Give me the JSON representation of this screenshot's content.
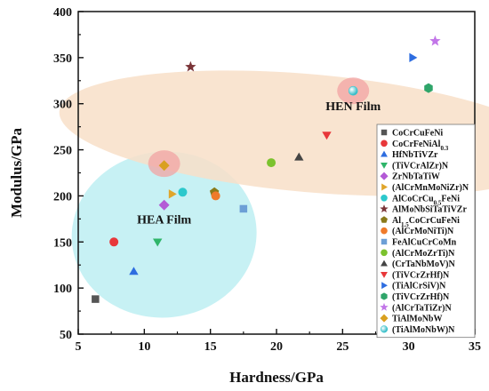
{
  "chart_data": {
    "type": "scatter",
    "xlabel": "Hardness/GPa",
    "ylabel": "Modulus/GPa",
    "xlim": [
      5,
      35
    ],
    "ylim": [
      50,
      400
    ],
    "xticks": [
      "5",
      "10",
      "15",
      "20",
      "25",
      "30",
      "35"
    ],
    "yticks": [
      "50",
      "100",
      "150",
      "200",
      "250",
      "300",
      "350",
      "400"
    ],
    "grid": false,
    "legend": "right",
    "annotations": [
      {
        "text": "HEN Film",
        "x": 25.8,
        "y": 293
      },
      {
        "text": "HEA Film",
        "x": 11.5,
        "y": 170
      }
    ],
    "regions": [
      {
        "cx": 11.5,
        "cy": 158,
        "rx": 7,
        "ry": 90,
        "angle_deg": -6,
        "color": "#bdeef2"
      },
      {
        "cx": 22.5,
        "cy": 268,
        "rx": 19,
        "ry": 64,
        "angle_deg": 5,
        "color": "#f8dfc8"
      }
    ],
    "highlights": [
      {
        "x": 11.5,
        "y": 235,
        "color": "#f2a3a3"
      },
      {
        "x": 25.8,
        "y": 314,
        "color": "#f2a3a3"
      }
    ],
    "series": [
      {
        "name": "CoCrCuFeNi",
        "marker": "square",
        "color": "#555555",
        "points": [
          [
            6.3,
            88
          ]
        ]
      },
      {
        "name": "CoCrFeNiAl0.3",
        "label_main": "CoCrFeNiAl",
        "label_sub": "0.3",
        "marker": "circle",
        "color": "#e8373a",
        "points": [
          [
            7.7,
            150
          ]
        ]
      },
      {
        "name": "HfNbTiVZr",
        "marker": "triangle-up",
        "color": "#2e6de0",
        "points": [
          [
            9.2,
            118
          ]
        ]
      },
      {
        "name": "(TiVCrAlZr)N",
        "marker": "triangle-down",
        "color": "#2fb56a",
        "points": [
          [
            11.0,
            150
          ]
        ]
      },
      {
        "name": "ZrNbTaTiW",
        "marker": "diamond",
        "color": "#b35ad6",
        "points": [
          [
            11.5,
            190
          ]
        ]
      },
      {
        "name": "(AlCrMnMoNiZr)N",
        "marker": "triangle-right",
        "color": "#e0a52a",
        "points": [
          [
            12.1,
            202
          ]
        ]
      },
      {
        "name": "AlCoCrCu0.5FeNi",
        "label_main": "AlCoCrCu",
        "label_sub": "0.5",
        "label_after": "FeNi",
        "marker": "circle",
        "color": "#2cc8cc",
        "points": [
          [
            12.9,
            204
          ]
        ]
      },
      {
        "name": "AlMoNbSiTaTiVZr",
        "marker": "star",
        "color": "#7a3438",
        "points": [
          [
            13.5,
            340
          ]
        ]
      },
      {
        "name": "Al1.5CoCrCuFeNi",
        "label_main": "Al",
        "label_sub": "1.5",
        "label_after": "CoCrCuFeNi",
        "marker": "pentagon",
        "color": "#8a7a1a",
        "points": [
          [
            15.3,
            204
          ]
        ]
      },
      {
        "name": "(AlCrMoNiTi)N",
        "marker": "circle",
        "color": "#ef7a2a",
        "points": [
          [
            15.4,
            200
          ]
        ]
      },
      {
        "name": "FeAlCuCrCoMn",
        "marker": "square",
        "color": "#6c9fd6",
        "points": [
          [
            17.5,
            186
          ]
        ]
      },
      {
        "name": "(AlCrMoZrTi)N",
        "marker": "circle",
        "color": "#7cc22e",
        "points": [
          [
            19.6,
            236
          ]
        ]
      },
      {
        "name": "(CrTaNbMoV)N",
        "marker": "triangle-up",
        "color": "#444444",
        "points": [
          [
            21.7,
            242
          ]
        ]
      },
      {
        "name": "(TiVCrZrHf)N",
        "marker": "triangle-down",
        "color": "#e8373a",
        "points": [
          [
            23.8,
            266
          ]
        ]
      },
      {
        "name": "(TiAlCrSiV)N",
        "marker": "triangle-right",
        "color": "#2e6de0",
        "points": [
          [
            30.3,
            350
          ]
        ]
      },
      {
        "name": "(TiVCrZrHf)N",
        "marker": "hexagon",
        "color": "#2fa56a",
        "points": [
          [
            31.5,
            317
          ]
        ]
      },
      {
        "name": "(AlCrTaTiZr)N",
        "marker": "star",
        "color": "#c276e8",
        "points": [
          [
            32.0,
            368
          ]
        ]
      },
      {
        "name": "TiAlMoNbW",
        "marker": "diamond",
        "color": "#d9a020",
        "points": [
          [
            11.5,
            233
          ]
        ]
      },
      {
        "name": "(TiAlMoNbW)N",
        "marker": "sphere",
        "color": "#3ec8d0",
        "points": [
          [
            25.8,
            314
          ]
        ]
      }
    ]
  }
}
